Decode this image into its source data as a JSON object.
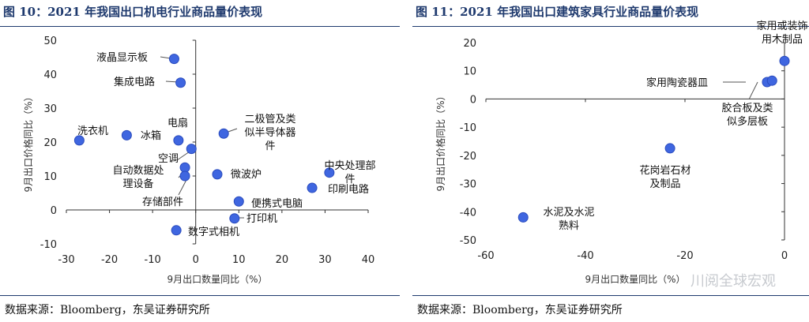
{
  "left": {
    "title": "图 10：2021 年我国出口机电行业商品量价表现",
    "source": "数据来源：Bloomberg，东吴证券研究所"
  },
  "right": {
    "title": "图 11：2021 年我国出口建筑家具行业商品量价表现",
    "source": "数据来源：Bloomberg，东吴证券研究所",
    "watermark": "川阅全球宏观"
  },
  "colors": {
    "point": "#3f66e0",
    "rule": "#1f3a6e"
  },
  "chart_data": [
    {
      "type": "scatter",
      "xlabel": "9月出口数量同比（%）",
      "ylabel": "9月出口价格同比（%）",
      "xlim": [
        -30,
        40
      ],
      "ylim": [
        -10,
        50
      ],
      "xticks": [
        "-30",
        "-20",
        "-10",
        "0",
        "10",
        "20",
        "30",
        "40"
      ],
      "yticks": [
        "-10",
        "0",
        "10",
        "20",
        "30",
        "40",
        "50"
      ],
      "points": [
        {
          "label": "液晶显示板",
          "x": -5,
          "y": 44.5
        },
        {
          "label": "集成电路",
          "x": -3.5,
          "y": 37.5
        },
        {
          "label": "洗衣机",
          "x": -27,
          "y": 20.5
        },
        {
          "label": "冰箱",
          "x": -16,
          "y": 22
        },
        {
          "label": "电扇",
          "x": -4,
          "y": 20.5
        },
        {
          "label": "空调",
          "x": -1,
          "y": 18
        },
        {
          "label": "自动数据处理设备",
          "x": -2.5,
          "y": 12.5
        },
        {
          "label": "存储部件",
          "x": -2.5,
          "y": 10
        },
        {
          "label": "二极管及类似半导体器件",
          "x": 6.5,
          "y": 22.5
        },
        {
          "label": "微波炉",
          "x": 5,
          "y": 10.5
        },
        {
          "label": "中央处理部件",
          "x": 31,
          "y": 11
        },
        {
          "label": "印刷电路",
          "x": 27,
          "y": 6.5
        },
        {
          "label": "便携式电脑",
          "x": 10,
          "y": 2.5
        },
        {
          "label": "打印机",
          "x": 9,
          "y": -2.5
        },
        {
          "label": "数字式相机",
          "x": -4.5,
          "y": -6
        }
      ]
    },
    {
      "type": "scatter",
      "xlabel": "9月出口数量同比（%）",
      "ylabel": "9月出口价格同比（%）",
      "xlim": [
        -60,
        0
      ],
      "ylim": [
        -50,
        20
      ],
      "xticks": [
        "-60",
        "-40",
        "-20",
        "0"
      ],
      "yticks": [
        "-50",
        "-40",
        "-30",
        "-20",
        "-10",
        "0",
        "10",
        "20"
      ],
      "points": [
        {
          "label": "家用或装饰用木制品",
          "x": 0,
          "y": 13.5
        },
        {
          "label": "家用陶瓷器皿",
          "x": -3.5,
          "y": 6
        },
        {
          "label": "胶合板及类似多层板",
          "x": -2.5,
          "y": 6.5
        },
        {
          "label": "花岗岩石材及制品",
          "x": -23,
          "y": -17.5
        },
        {
          "label": "水泥及水泥熟料",
          "x": -52.5,
          "y": -42
        }
      ]
    }
  ]
}
